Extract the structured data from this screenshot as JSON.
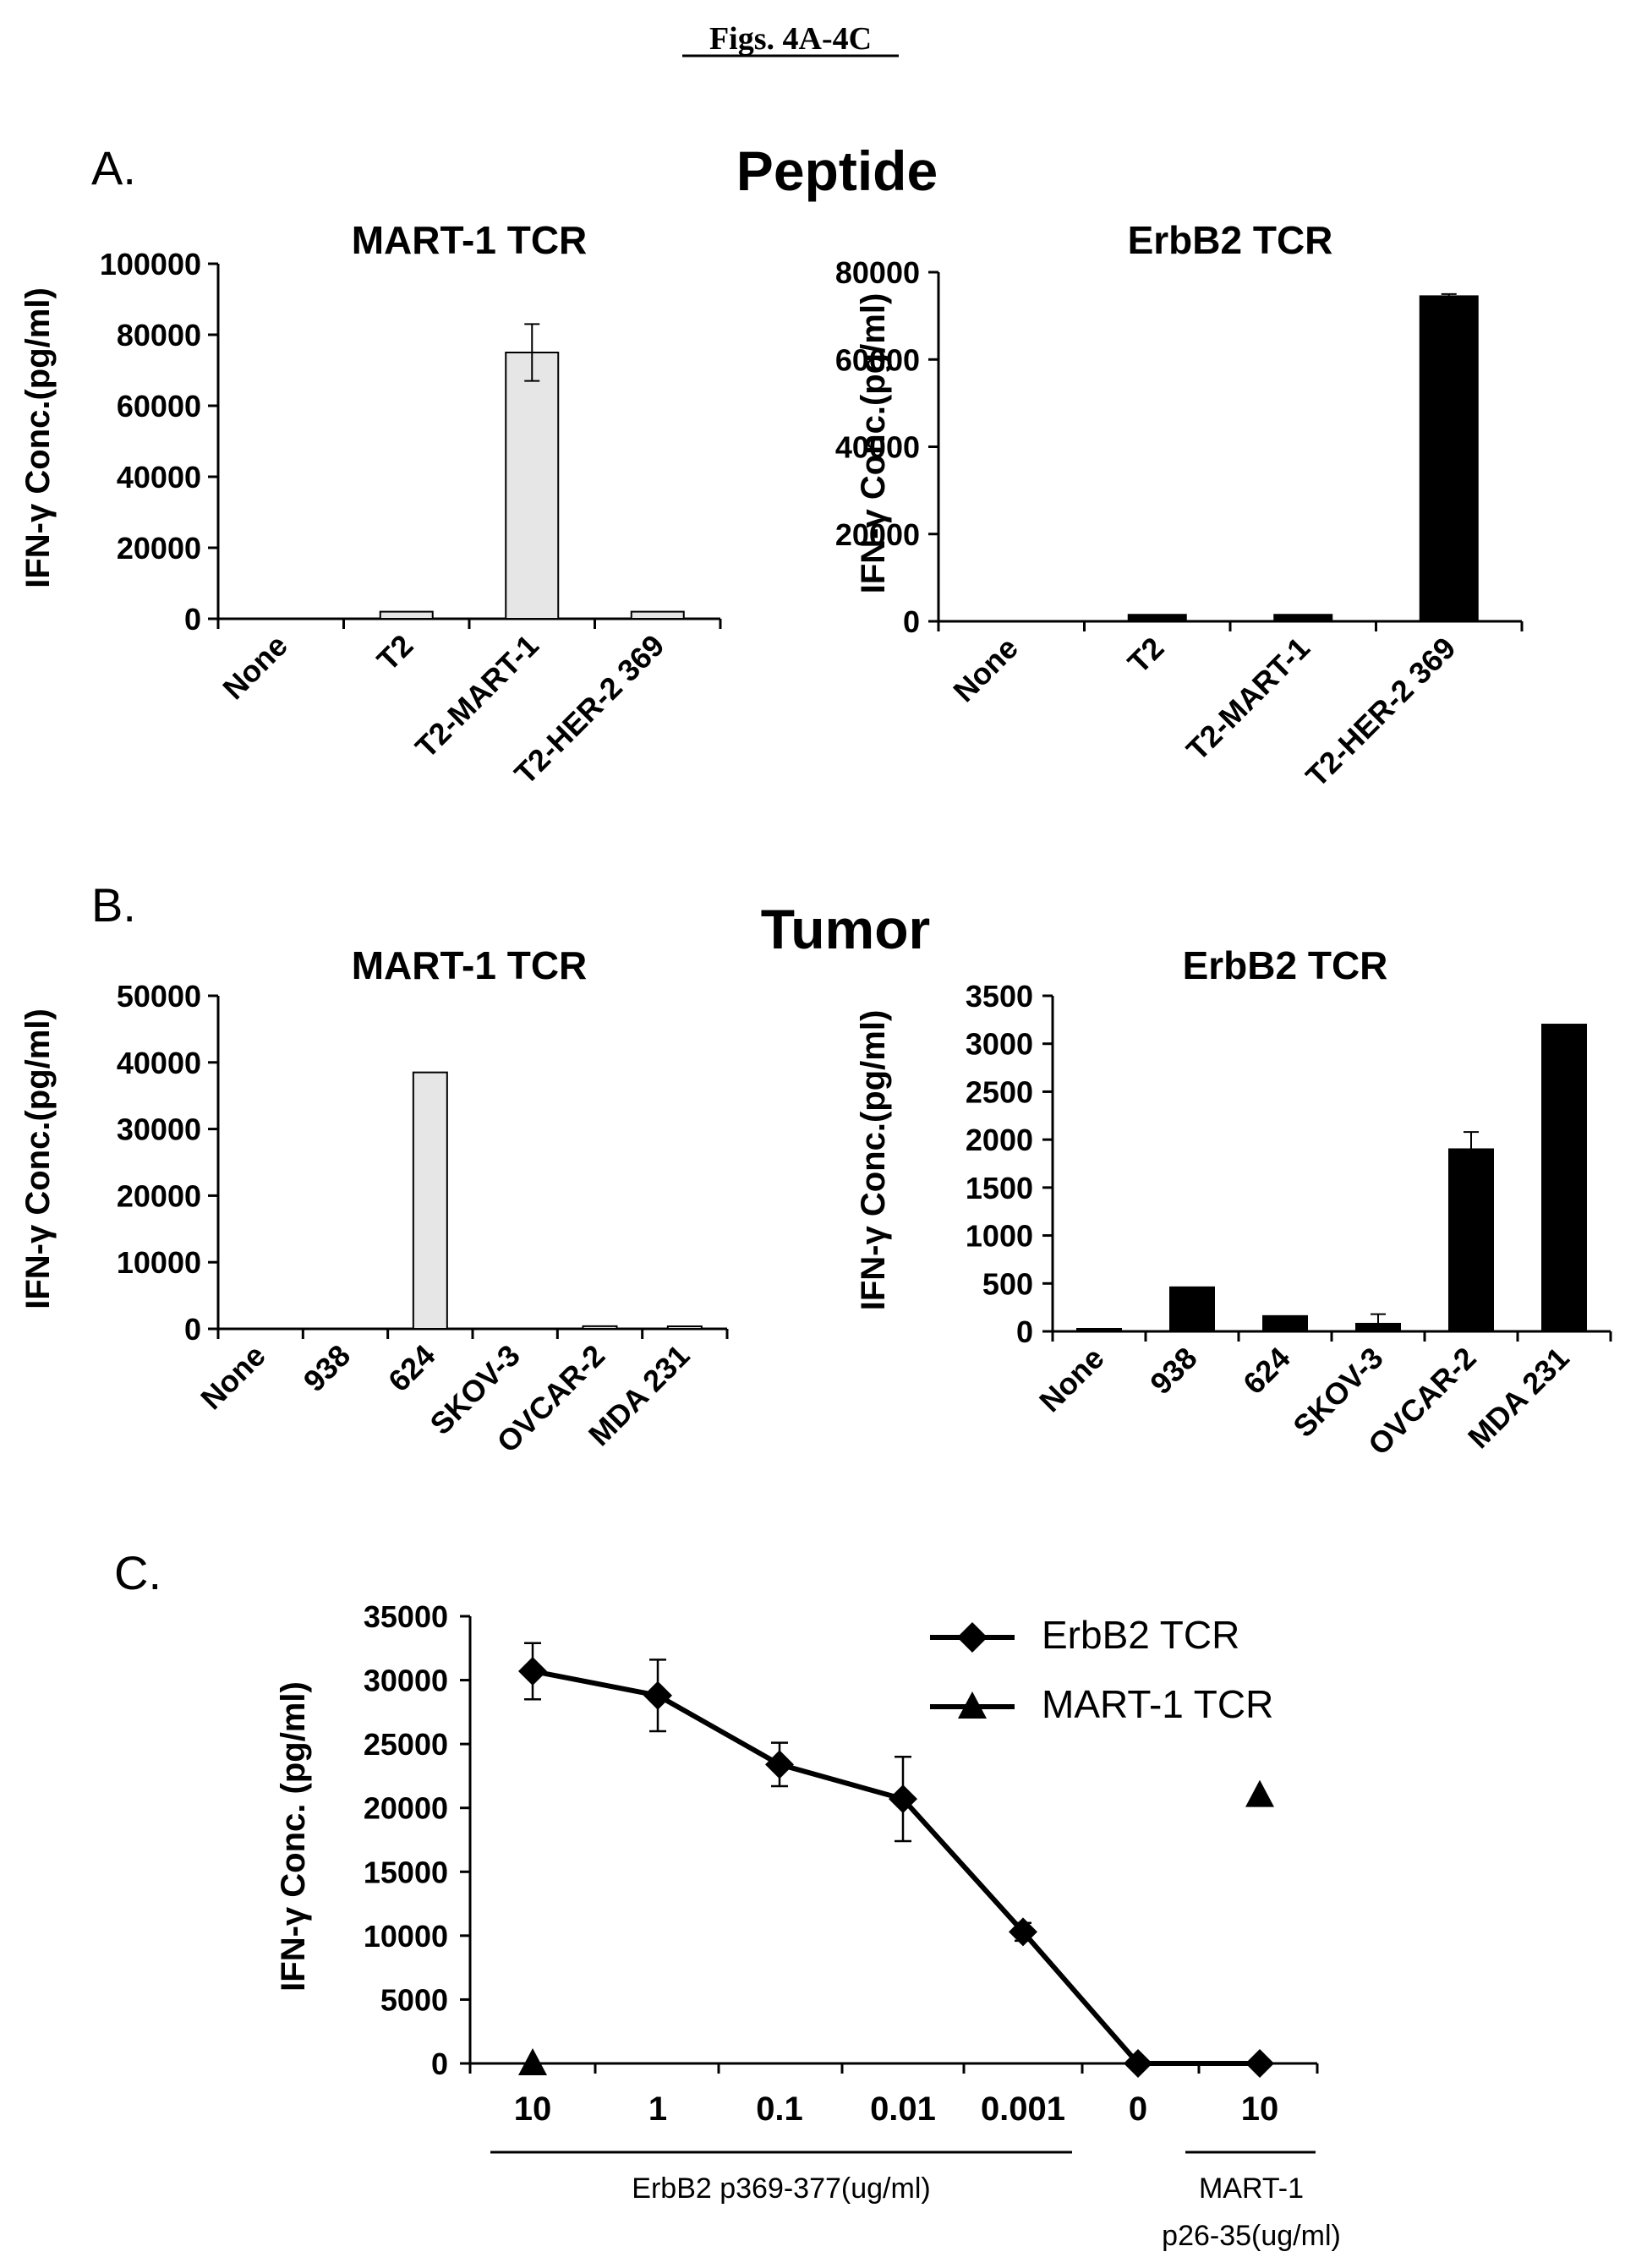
{
  "figure_title": "Figs. 4A-4C",
  "panel_labels": {
    "A": "A.",
    "B": "B.",
    "C": "C."
  },
  "section_titles": {
    "peptide": "Peptide",
    "tumor": "Tumor"
  },
  "chart_data": [
    {
      "id": "A1",
      "type": "bar",
      "title": "MART-1 TCR",
      "ylabel": "IFN-γ Conc.(pg/ml)",
      "categories": [
        "None",
        "T2",
        "T2-MART-1",
        "T2-HER-2 369"
      ],
      "values": [
        0,
        2000,
        75000,
        2000
      ],
      "errors": [
        0,
        0,
        8000,
        0
      ],
      "ylim": [
        0,
        100000
      ],
      "yticks": [
        0,
        20000,
        40000,
        60000,
        80000,
        100000
      ],
      "bar_color": "#e6e6e6"
    },
    {
      "id": "A2",
      "type": "bar",
      "title": "ErbB2 TCR",
      "ylabel": "IFN-γ Conc.(pg/ml)",
      "categories": [
        "None",
        "T2",
        "T2-MART-1",
        "T2-HER-2 369"
      ],
      "values": [
        0,
        1500,
        1500,
        74500
      ],
      "errors": [
        0,
        0,
        0,
        500
      ],
      "ylim": [
        0,
        80000
      ],
      "yticks": [
        0,
        20000,
        40000,
        60000,
        80000
      ],
      "bar_color": "#000000"
    },
    {
      "id": "B1",
      "type": "bar",
      "title": "MART-1 TCR",
      "ylabel": "IFN-γ Conc.(pg/ml)",
      "categories": [
        "None",
        "938",
        "624",
        "SKOV-3",
        "OVCAR-2",
        "MDA 231"
      ],
      "values": [
        0,
        0,
        38500,
        0,
        400,
        200
      ],
      "errors": [
        0,
        0,
        0,
        0,
        0,
        0
      ],
      "ylim": [
        0,
        50000
      ],
      "yticks": [
        0,
        10000,
        20000,
        30000,
        40000,
        50000
      ],
      "bar_color": "#e6e6e6"
    },
    {
      "id": "B2",
      "type": "bar",
      "title": "ErbB2 TCR",
      "ylabel": "IFN-γ Conc.(pg/ml)",
      "categories": [
        "None",
        "938",
        "624",
        "SKOV-3",
        "OVCAR-2",
        "MDA 231"
      ],
      "values": [
        10,
        460,
        160,
        80,
        1900,
        3200
      ],
      "errors": [
        0,
        0,
        0,
        100,
        180,
        0
      ],
      "ylim": [
        0,
        3500
      ],
      "yticks": [
        0,
        500,
        1000,
        1500,
        2000,
        2500,
        3000,
        3500
      ],
      "bar_color": "#000000"
    },
    {
      "id": "C",
      "type": "line",
      "ylabel": "IFN-γ Conc. (pg/ml)",
      "x": [
        "10",
        "1",
        "0.1",
        "0.01",
        "0.001",
        "0",
        "10"
      ],
      "ylim": [
        0,
        35000
      ],
      "yticks": [
        0,
        5000,
        10000,
        15000,
        20000,
        25000,
        30000,
        35000
      ],
      "group_labels": [
        "ErbB2 p369-377(ug/ml)",
        "MART-1 p26-35(ug/ml)"
      ],
      "legend_position": "top-right",
      "series": [
        {
          "name": "ErbB2 TCR",
          "marker": "diamond",
          "values": [
            30700,
            28800,
            23400,
            20700,
            10300,
            0,
            0
          ],
          "errors": [
            2200,
            2800,
            1700,
            3300,
            700,
            0,
            0
          ]
        },
        {
          "name": "MART-1 TCR",
          "marker": "triangle",
          "points": [
            {
              "x_index": 0,
              "y": 0
            },
            {
              "x_index": 6,
              "y": 21000
            }
          ]
        }
      ]
    }
  ]
}
